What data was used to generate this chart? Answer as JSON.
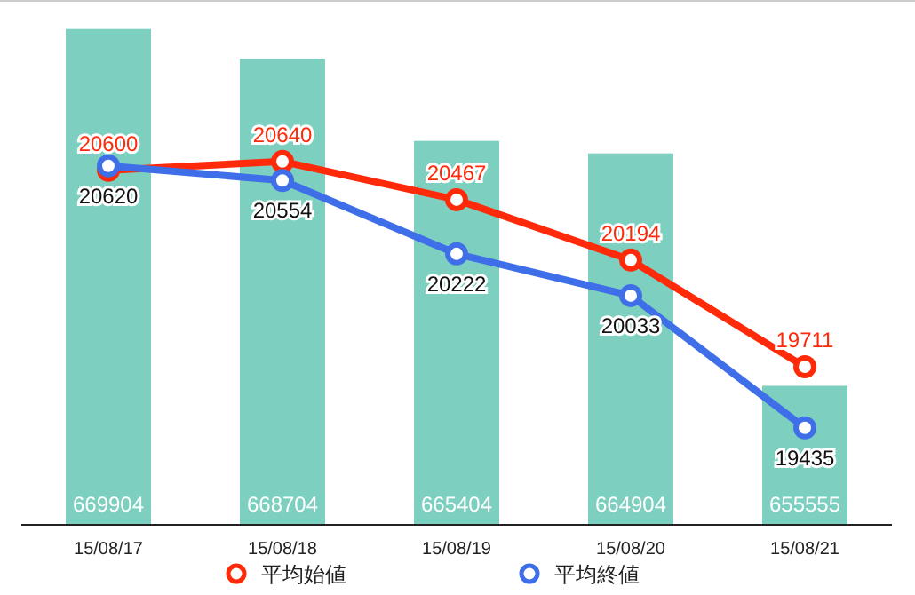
{
  "chart_data": {
    "type": "bar",
    "categories": [
      "15/08/17",
      "15/08/18",
      "15/08/19",
      "15/08/20",
      "15/08/21"
    ],
    "series": [
      {
        "color": "#7dcfbf",
        "values": [
          669904,
          668704,
          665404,
          664904,
          655555
        ]
      },
      {
        "type": "line",
        "axis": "y2",
        "name": "平均始値",
        "color": "#ff2a0a",
        "values": [
          20600,
          20640,
          20467,
          20194,
          19711
        ]
      },
      {
        "type": "line",
        "axis": "y2",
        "name": "平均終値",
        "color": "#3f6fe8",
        "values": [
          20620,
          20554,
          20222,
          20033,
          19435
        ]
      }
    ],
    "ylim": [
      650000,
      670000
    ],
    "y2lim": [
      19000,
      21250
    ],
    "tick_labels": "x",
    "data_labels": true,
    "marker": "circle",
    "legend": "bottom",
    "grid": false
  }
}
